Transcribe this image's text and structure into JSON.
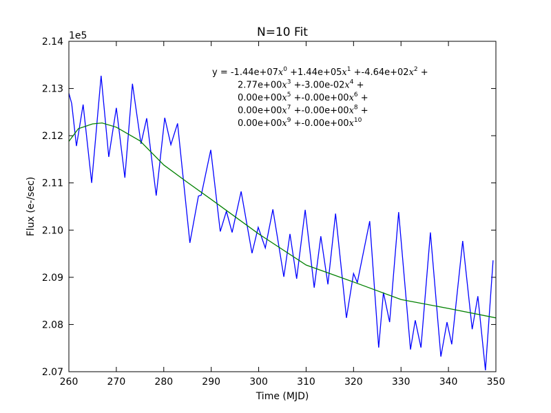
{
  "chart_data": {
    "type": "line",
    "title": "N=10 Fit",
    "xlabel": "Time (MJD)",
    "ylabel": "Flux (e-/sec)",
    "y_offset_text": "1e5",
    "xlim": [
      260,
      350
    ],
    "ylim": [
      2.07,
      2.14
    ],
    "xticks": [
      260,
      270,
      280,
      290,
      300,
      310,
      320,
      330,
      340,
      350
    ],
    "yticks": [
      2.07,
      2.08,
      2.09,
      {
        "value": 2.1,
        "label": "2.10"
      },
      2.11,
      2.12,
      2.13,
      2.14
    ],
    "grid": false,
    "series": [
      {
        "color": "#0000ff",
        "x": [
          260,
          260.6,
          261.6,
          263.0,
          264.8,
          266.8,
          268.4,
          270.0,
          271.8,
          273.4,
          275.2,
          276.4,
          278.4,
          280.2,
          281.5,
          282.9,
          285.5,
          287.3,
          287.9,
          289.9,
          291.9,
          293.2,
          294.4,
          296.3,
          298.6,
          299.9,
          301.4,
          303.0,
          305.3,
          306.6,
          308.0,
          309.8,
          311.7,
          313.1,
          314.6,
          316.2,
          318.5,
          320.0,
          320.8,
          323.4,
          325.3,
          326.3,
          327.6,
          329.5,
          332.0,
          333.0,
          334.2,
          336.2,
          338.4,
          339.7,
          340.7,
          343.0,
          345.0,
          346.2,
          347.8,
          349.4
        ],
        "values": [
          2.129,
          2.1268,
          2.1178,
          2.1266,
          2.11,
          2.1327,
          2.1155,
          2.1259,
          2.1111,
          2.131,
          2.1183,
          2.1237,
          2.1073,
          2.1238,
          2.1181,
          2.1226,
          2.0973,
          2.1072,
          2.1074,
          2.117,
          2.0997,
          2.104,
          2.0995,
          2.1082,
          2.0951,
          2.1006,
          2.0962,
          2.1044,
          2.0901,
          2.0992,
          2.0897,
          2.1043,
          2.0878,
          2.0987,
          2.0885,
          2.1035,
          2.0814,
          2.0908,
          2.0889,
          2.1019,
          2.0751,
          2.0868,
          2.0805,
          2.1038,
          2.0747,
          2.0809,
          2.0751,
          2.0995,
          2.0732,
          2.0805,
          2.0758,
          2.0977,
          2.079,
          2.086,
          2.0703,
          2.0936
        ]
      },
      {
        "color": "#008000",
        "x": [
          260,
          262,
          265,
          267,
          270,
          275,
          280,
          285,
          290,
          300,
          310,
          320,
          330,
          340,
          350
        ],
        "values": [
          2.1188,
          2.1215,
          2.1225,
          2.1227,
          2.1218,
          2.1189,
          2.1138,
          2.1101,
          2.1065,
          2.0992,
          2.0926,
          2.089,
          2.0853,
          2.0834,
          2.0814
        ]
      }
    ],
    "annotation": [
      [
        "y = -1.44e+07",
        {
          "var": "x",
          "sup": "0"
        },
        " +1.44e+05",
        {
          "var": "x",
          "sup": "1"
        },
        " +-4.64e+02",
        {
          "var": "x",
          "sup": "2"
        },
        " +"
      ],
      [
        "2.77e+00",
        {
          "var": "x",
          "sup": "3"
        },
        " +-3.00e-02",
        {
          "var": "x",
          "sup": "4"
        },
        " +"
      ],
      [
        "0.00e+00",
        {
          "var": "x",
          "sup": "5"
        },
        " +-0.00e+00",
        {
          "var": "x",
          "sup": "6"
        },
        " +"
      ],
      [
        "0.00e+00",
        {
          "var": "x",
          "sup": "7"
        },
        " +-0.00e+00",
        {
          "var": "x",
          "sup": "8"
        },
        " +"
      ],
      [
        "0.00e+00",
        {
          "var": "x",
          "sup": "9"
        },
        " +-0.00e+00",
        {
          "var": "x",
          "sup": "10"
        }
      ]
    ]
  }
}
